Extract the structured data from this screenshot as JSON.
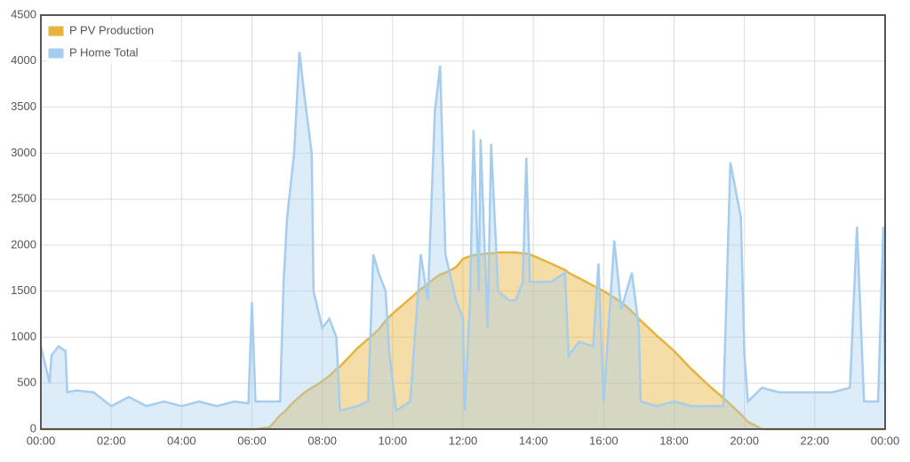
{
  "chart_data": {
    "type": "area",
    "x": [
      0,
      0.25,
      0.3,
      0.5,
      0.7,
      0.75,
      1,
      1.5,
      2,
      2.5,
      3,
      3.5,
      4,
      4.5,
      5,
      5.5,
      5.9,
      6,
      6.1,
      6.5,
      6.8,
      6.9,
      7,
      7.2,
      7.35,
      7.5,
      7.7,
      7.75,
      8,
      8.2,
      8.4,
      8.5,
      9,
      9.3,
      9.45,
      9.6,
      9.8,
      9.9,
      10.1,
      10.5,
      10.8,
      11,
      11.2,
      11.35,
      11.5,
      11.8,
      12,
      12.05,
      12.2,
      12.3,
      12.45,
      12.5,
      12.7,
      12.8,
      13,
      13.3,
      13.5,
      13.7,
      13.8,
      13.9,
      14.5,
      14.9,
      15,
      15.3,
      15.7,
      15.85,
      16,
      16.3,
      16.5,
      16.8,
      17,
      17.05,
      17.5,
      18,
      18.5,
      19,
      19.4,
      19.6,
      19.9,
      20,
      20.1,
      20.5,
      21,
      21.5,
      22,
      22.5,
      23,
      23.2,
      23.4,
      23.8,
      23.95,
      24
    ],
    "series": [
      {
        "name": "P PV Production",
        "color": "#e6b43c",
        "values": [
          0,
          0,
          0,
          0,
          0,
          0,
          0,
          0,
          0,
          0,
          0,
          0,
          0,
          0,
          0,
          0,
          0,
          0,
          0,
          20,
          150,
          180,
          220,
          300,
          350,
          400,
          450,
          460,
          520,
          580,
          650,
          680,
          880,
          980,
          1030,
          1080,
          1180,
          1220,
          1290,
          1420,
          1520,
          1580,
          1640,
          1680,
          1700,
          1760,
          1850,
          1860,
          1880,
          1890,
          1900,
          1900,
          1910,
          1910,
          1920,
          1920,
          1920,
          1910,
          1910,
          1900,
          1800,
          1730,
          1700,
          1640,
          1560,
          1530,
          1500,
          1430,
          1380,
          1280,
          1200,
          1180,
          1020,
          850,
          650,
          470,
          340,
          270,
          160,
          120,
          80,
          0,
          0,
          0,
          0,
          0,
          0,
          0,
          0,
          0,
          0,
          0
        ]
      },
      {
        "name": "P Home Total",
        "color": "#a6cdee",
        "values": [
          900,
          500,
          800,
          900,
          850,
          400,
          420,
          400,
          250,
          350,
          250,
          300,
          250,
          300,
          250,
          300,
          280,
          1380,
          300,
          300,
          300,
          1600,
          2300,
          3000,
          4100,
          3600,
          3000,
          1500,
          1100,
          1200,
          1000,
          200,
          250,
          300,
          1900,
          1700,
          1500,
          850,
          200,
          300,
          1900,
          1400,
          3450,
          3950,
          1900,
          1400,
          1200,
          200,
          1400,
          3250,
          1500,
          3150,
          1100,
          3100,
          1500,
          1400,
          1400,
          1600,
          2950,
          1600,
          1600,
          1700,
          800,
          950,
          900,
          1800,
          300,
          2050,
          1300,
          1700,
          1100,
          300,
          250,
          300,
          250,
          250,
          250,
          2900,
          2300,
          800,
          300,
          450,
          400,
          400,
          400,
          400,
          450,
          2200,
          300,
          300,
          2200,
          400
        ]
      }
    ],
    "xlim": [
      0,
      24
    ],
    "xticks": [
      {
        "value": 0,
        "label": "00:00"
      },
      {
        "value": 2,
        "label": "02:00"
      },
      {
        "value": 4,
        "label": "04:00"
      },
      {
        "value": 6,
        "label": "06:00"
      },
      {
        "value": 8,
        "label": "08:00"
      },
      {
        "value": 10,
        "label": "10:00"
      },
      {
        "value": 12,
        "label": "12:00"
      },
      {
        "value": 14,
        "label": "14:00"
      },
      {
        "value": 16,
        "label": "16:00"
      },
      {
        "value": 18,
        "label": "18:00"
      },
      {
        "value": 20,
        "label": "20:00"
      },
      {
        "value": 22,
        "label": "22:00"
      },
      {
        "value": 24,
        "label": "00:00"
      }
    ],
    "ylim": [
      0,
      4500
    ],
    "yticks": [
      0,
      500,
      1000,
      1500,
      2000,
      2500,
      3000,
      3500,
      4000,
      4500
    ],
    "grid": true,
    "legend": "top-left"
  }
}
